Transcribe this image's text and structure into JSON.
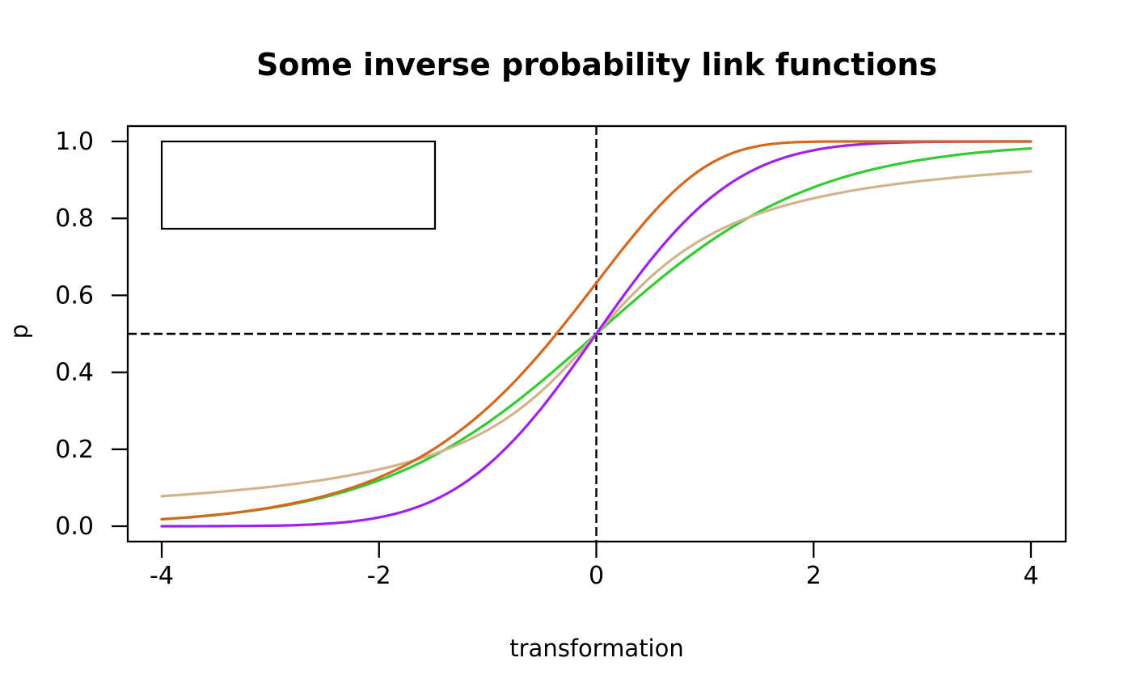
{
  "chart_data": {
    "type": "line",
    "title": "Some inverse probability link functions",
    "xlabel": "transformation",
    "ylabel": "p",
    "xlim": [
      -4.32,
      4.32
    ],
    "ylim": [
      -0.04,
      1.04
    ],
    "grid": false,
    "x_ticks": {
      "values": [
        -4,
        -2,
        0,
        2,
        4
      ],
      "labels": [
        "-4",
        "-2",
        "0",
        "2",
        "4"
      ]
    },
    "y_ticks": {
      "values": [
        0,
        0.2,
        0.4,
        0.6,
        0.8,
        1.0
      ],
      "labels": [
        "0.0",
        "0.2",
        "0.4",
        "0.6",
        "0.8",
        "1.0"
      ]
    },
    "reference_lines": {
      "vertical_x": 0,
      "horizontal_y": 0.5,
      "style": "dashed",
      "color": "#000000"
    },
    "legend": {
      "position": "topleft",
      "empty": true,
      "entries": []
    },
    "axis_color": "#000000",
    "x": [
      -4,
      -3.75,
      -3.5,
      -3.25,
      -3,
      -2.75,
      -2.5,
      -2.25,
      -2,
      -1.75,
      -1.5,
      -1.25,
      -1,
      -0.75,
      -0.5,
      -0.25,
      0,
      0.25,
      0.5,
      0.75,
      1,
      1.25,
      1.5,
      1.75,
      2,
      2.25,
      2.5,
      2.75,
      3,
      3.25,
      3.5,
      3.75,
      4
    ],
    "series": [
      {
        "name": "green",
        "color": "#32CD32",
        "values": [
          0.018,
          0.023,
          0.0293,
          0.0373,
          0.0474,
          0.0601,
          0.0759,
          0.0953,
          0.1192,
          0.148,
          0.1824,
          0.2227,
          0.2689,
          0.3208,
          0.3775,
          0.4378,
          0.5,
          0.5622,
          0.6225,
          0.6792,
          0.7311,
          0.7773,
          0.8176,
          0.852,
          0.8808,
          0.9047,
          0.9241,
          0.9399,
          0.9526,
          0.9627,
          0.9707,
          0.977,
          0.982
        ]
      },
      {
        "name": "tan",
        "color": "#D2B48C",
        "values": [
          0.078,
          0.083,
          0.0886,
          0.0951,
          0.1024,
          0.111,
          0.1211,
          0.1331,
          0.1476,
          0.1653,
          0.1872,
          0.2148,
          0.25,
          0.2952,
          0.3524,
          0.422,
          0.5,
          0.578,
          0.6476,
          0.7048,
          0.75,
          0.7852,
          0.8128,
          0.8347,
          0.8524,
          0.8669,
          0.8789,
          0.889,
          0.8976,
          0.9049,
          0.9114,
          0.917,
          0.922
        ]
      },
      {
        "name": "purple",
        "color": "#A020F0",
        "values": [
          0.0,
          0.0001,
          0.0002,
          0.0006,
          0.0013,
          0.003,
          0.0062,
          0.0122,
          0.0228,
          0.0401,
          0.0668,
          0.1056,
          0.1587,
          0.2266,
          0.3085,
          0.4013,
          0.5,
          0.5987,
          0.6915,
          0.7734,
          0.8413,
          0.8944,
          0.9332,
          0.9599,
          0.9772,
          0.9878,
          0.9938,
          0.997,
          0.9987,
          0.9994,
          0.9998,
          0.9999,
          1.0
        ]
      },
      {
        "name": "chocolate",
        "color": "#D2691E",
        "values": [
          0.0181,
          0.0232,
          0.0297,
          0.038,
          0.0486,
          0.0619,
          0.0788,
          0.1,
          0.1266,
          0.1595,
          0.1998,
          0.2491,
          0.3078,
          0.3765,
          0.4547,
          0.5411,
          0.6321,
          0.7231,
          0.8077,
          0.8796,
          0.934,
          0.9695,
          0.9887,
          0.9968,
          0.9994,
          0.9999,
          1.0,
          1.0,
          1.0,
          1.0,
          1.0,
          1.0,
          1.0
        ]
      }
    ]
  }
}
